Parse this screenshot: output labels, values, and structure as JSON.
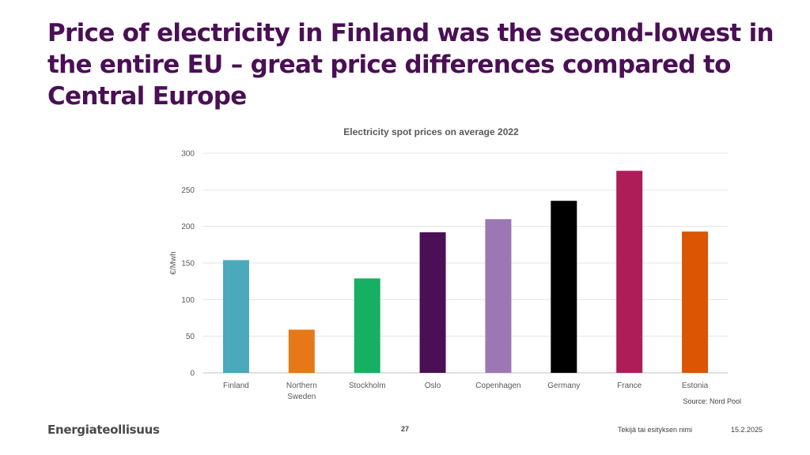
{
  "slide": {
    "title": "Price of electricity in Finland was the second-lowest in the entire EU – great price differences compared to Central Europe"
  },
  "chart_data": {
    "type": "bar",
    "title": "Electricity spot prices on average 2022",
    "ylabel": "€/Mwh",
    "xlabel": "",
    "ylim": [
      0,
      300
    ],
    "yticks": [
      0,
      50,
      100,
      150,
      200,
      250,
      300
    ],
    "grid": true,
    "categories": [
      "Finland",
      "Northern Sweden",
      "Stockholm",
      "Oslo",
      "Copenhagen",
      "Germany",
      "France",
      "Estonia"
    ],
    "category_lines": [
      [
        "Finland"
      ],
      [
        "Northern",
        "Sweden"
      ],
      [
        "Stockholm"
      ],
      [
        "Oslo"
      ],
      [
        "Copenhagen"
      ],
      [
        "Germany"
      ],
      [
        "France"
      ],
      [
        "Estonia"
      ]
    ],
    "values": [
      154,
      59,
      129,
      192,
      210,
      235,
      276,
      193
    ],
    "colors": [
      "#4aa9ba",
      "#e67817",
      "#15b062",
      "#4a0f55",
      "#9c77b4",
      "#000000",
      "#ae1d57",
      "#db5503"
    ]
  },
  "source": "Source: Nord Pool",
  "footer": {
    "logo_text": "Energiateollisuus",
    "page_number": "27",
    "author": "Tekijä tai esityksen nimi",
    "date": "15.2.2025"
  }
}
